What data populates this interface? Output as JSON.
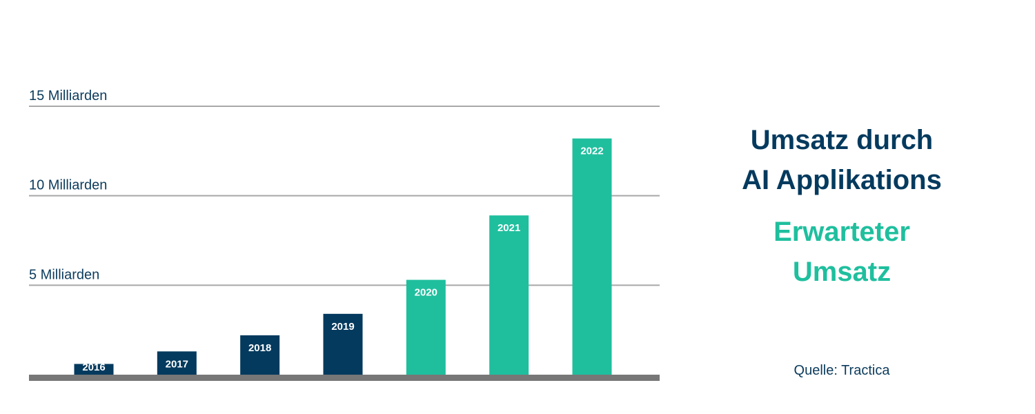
{
  "colors": {
    "actual": "#043a5e",
    "expected": "#1fbf9e",
    "gridline": "#a8a8a8",
    "baseline": "#777777",
    "axis_text": "#0b3b5c"
  },
  "title": {
    "line1": "Umsatz durch",
    "line2": "AI Applikations"
  },
  "subtitle": {
    "line1": "Erwarteter",
    "line2": "Umsatz"
  },
  "source": "Quelle: Tractica",
  "chart_data": {
    "type": "bar",
    "categories": [
      "2016",
      "2017",
      "2018",
      "2019",
      "2020",
      "2021",
      "2022"
    ],
    "values": [
      0.6,
      1.3,
      2.2,
      3.4,
      5.3,
      8.9,
      13.2
    ],
    "expected": [
      false,
      false,
      false,
      false,
      true,
      true,
      true
    ],
    "ylim": [
      0,
      15
    ],
    "ytick_labels": [
      {
        "value": 5,
        "label": "5 Milliarden"
      },
      {
        "value": 10,
        "label": "10 Milliarden"
      },
      {
        "value": 15,
        "label": "15 Milliarden"
      }
    ],
    "grid": true,
    "data_labels": "category names shown on bars"
  }
}
